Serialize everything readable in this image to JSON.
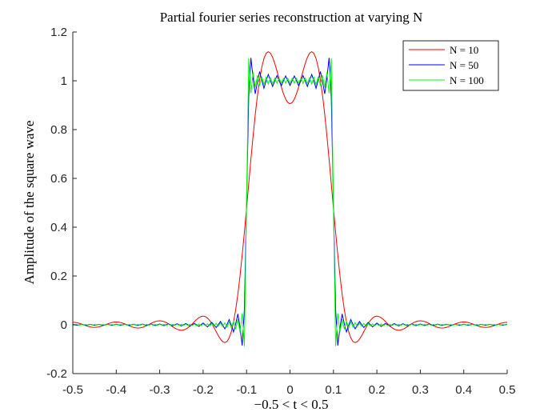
{
  "chart_data": {
    "type": "line",
    "title": "Partial fourier series reconstruction at varying N",
    "xlabel": "−0.5 < t < 0.5",
    "ylabel": "Amplitude of the square wave",
    "xlim": [
      -0.5,
      0.5
    ],
    "ylim": [
      -0.2,
      1.2
    ],
    "xticks": [
      -0.5,
      -0.4,
      -0.3,
      -0.2,
      -0.1,
      0,
      0.1,
      0.2,
      0.3,
      0.4,
      0.5
    ],
    "xtick_labels": [
      "-0.5",
      "-0.4",
      "-0.3",
      "-0.2",
      "-0.1",
      "0",
      "0.1",
      "0.2",
      "0.3",
      "0.4",
      "0.5"
    ],
    "yticks": [
      -0.2,
      0,
      0.2,
      0.4,
      0.6,
      0.8,
      1,
      1.2
    ],
    "ytick_labels": [
      "-0.2",
      "0",
      "0.2",
      "0.4",
      "0.6",
      "0.8",
      "1",
      "1.2"
    ],
    "grid": false,
    "legend_position": "top-right",
    "pulse_width": 0.2,
    "series": [
      {
        "name": "N = 10",
        "N": 10,
        "color": "#ff0000"
      },
      {
        "name": "N = 50",
        "N": 50,
        "color": "#0000ff"
      },
      {
        "name": "N = 100",
        "N": 100,
        "color": "#00ff00"
      }
    ]
  }
}
